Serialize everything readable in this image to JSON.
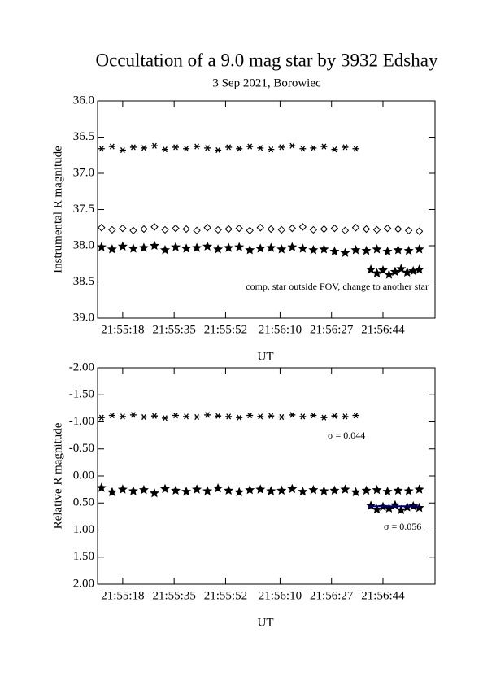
{
  "chart_data": [
    {
      "type": "scatter",
      "title": "Occultation of a 9.0 mag star by 3932 Edshay",
      "subtitle": "3 Sep 2021, Borowiec",
      "xlabel": "UT",
      "ylabel": "Instrumental R magnitude",
      "annotation": "comp. star outside FOV, change to another star",
      "xlim": [
        78909.7,
        79021.2
      ],
      "xticks": [
        {
          "value": 78918,
          "label": "21:55:18"
        },
        {
          "value": 78935,
          "label": "21:55:35"
        },
        {
          "value": 78952,
          "label": "21:55:52"
        },
        {
          "value": 78970,
          "label": "21:56:10"
        },
        {
          "value": 78987,
          "label": "21:56:27"
        },
        {
          "value": 79004,
          "label": "21:56:44"
        }
      ],
      "ylim": [
        39.0,
        36.0
      ],
      "yticks": [
        {
          "value": 36,
          "label": "36.0"
        },
        36.5,
        {
          "value": 37,
          "label": "37.0"
        },
        37.5,
        {
          "value": 38,
          "label": "38.0"
        },
        38.5,
        {
          "value": 39,
          "label": "39.0"
        }
      ],
      "series": [
        {
          "marker": "asterisk",
          "color": "#000000",
          "x": [
            78911,
            78914.5,
            78918,
            78921.5,
            78925,
            78928.5,
            78932,
            78935.5,
            78939,
            78942.5,
            78946,
            78949.5,
            78953,
            78956.5,
            78960,
            78963.5,
            78967,
            78970.5,
            78974,
            78977.5,
            78981,
            78984.5,
            78988,
            78991.5,
            78995
          ],
          "values": [
            36.66,
            36.63,
            36.68,
            36.64,
            36.65,
            36.62,
            36.67,
            36.64,
            36.66,
            36.63,
            36.65,
            36.68,
            36.64,
            36.66,
            36.63,
            36.65,
            36.67,
            36.64,
            36.62,
            36.66,
            36.65,
            36.63,
            36.67,
            36.64,
            36.66
          ]
        },
        {
          "marker": "diamond",
          "color": "#000000",
          "x": [
            78911,
            78914.5,
            78918,
            78921.5,
            78925,
            78928.5,
            78932,
            78935.5,
            78939,
            78942.5,
            78946,
            78949.5,
            78953,
            78956.5,
            78960,
            78963.5,
            78967,
            78970.5,
            78974,
            78977.5,
            78981,
            78984.5,
            78988,
            78991.5,
            78995,
            78998.5,
            79002,
            79005.5,
            79009,
            79012.5,
            79016
          ],
          "values": [
            37.75,
            37.78,
            37.76,
            37.79,
            37.77,
            37.74,
            37.78,
            37.76,
            37.77,
            37.79,
            37.75,
            37.78,
            37.77,
            37.76,
            37.79,
            37.75,
            37.77,
            37.78,
            37.76,
            37.74,
            37.78,
            37.77,
            37.76,
            37.79,
            37.75,
            37.77,
            37.78,
            37.76,
            37.77,
            37.79,
            37.8
          ]
        },
        {
          "marker": "star",
          "color": "#000000",
          "x": [
            78911,
            78914.5,
            78918,
            78921.5,
            78925,
            78928.5,
            78932,
            78935.5,
            78939,
            78942.5,
            78946,
            78949.5,
            78953,
            78956.5,
            78960,
            78963.5,
            78967,
            78970.5,
            78974,
            78977.5,
            78981,
            78984.5,
            78988,
            78991.5,
            78995,
            78998.5,
            79002,
            79005.5,
            79009,
            79012.5,
            79016
          ],
          "values": [
            38.02,
            38.05,
            38.01,
            38.04,
            38.03,
            38.0,
            38.06,
            38.02,
            38.04,
            38.03,
            38.01,
            38.05,
            38.03,
            38.02,
            38.06,
            38.04,
            38.03,
            38.05,
            38.02,
            38.04,
            38.06,
            38.05,
            38.08,
            38.1,
            38.06,
            38.07,
            38.05,
            38.08,
            38.06,
            38.07,
            38.05
          ]
        },
        {
          "marker": "star",
          "color": "#000000",
          "x": [
            79000,
            79002,
            79004,
            79006,
            79008,
            79010,
            79012,
            79014,
            79016
          ],
          "values": [
            38.33,
            38.38,
            38.34,
            38.4,
            38.36,
            38.32,
            38.37,
            38.35,
            38.33
          ]
        }
      ]
    },
    {
      "type": "scatter",
      "xlabel": "UT",
      "ylabel": "Relative R magnitude",
      "annotations": [
        "σ = 0.044",
        "σ = 0.056"
      ],
      "xlim": [
        78909.7,
        79021.2
      ],
      "xticks": [
        {
          "value": 78918,
          "label": "21:55:18"
        },
        {
          "value": 78935,
          "label": "21:55:35"
        },
        {
          "value": 78952,
          "label": "21:55:52"
        },
        {
          "value": 78970,
          "label": "21:56:10"
        },
        {
          "value": 78987,
          "label": "21:56:27"
        },
        {
          "value": 79004,
          "label": "21:56:44"
        }
      ],
      "ylim": [
        2.0,
        -2.0
      ],
      "yticks": [
        {
          "value": -2,
          "label": "-2.00"
        },
        {
          "value": -1.5,
          "label": "-1.50"
        },
        {
          "value": -1,
          "label": "-1.00"
        },
        {
          "value": -0.5,
          "label": "-0.50"
        },
        {
          "value": 0,
          "label": "0.00"
        },
        {
          "value": 0.5,
          "label": "0.50"
        },
        {
          "value": 1,
          "label": "1.00"
        },
        {
          "value": 1.5,
          "label": "1.50"
        },
        {
          "value": 2,
          "label": "2.00"
        }
      ],
      "series": [
        {
          "marker": "asterisk",
          "color": "#000000",
          "x": [
            78911,
            78914.5,
            78918,
            78921.5,
            78925,
            78928.5,
            78932,
            78935.5,
            78939,
            78942.5,
            78946,
            78949.5,
            78953,
            78956.5,
            78960,
            78963.5,
            78967,
            78970.5,
            78974,
            78977.5,
            78981,
            78984.5,
            78988,
            78991.5,
            78995
          ],
          "values": [
            -1.08,
            -1.12,
            -1.1,
            -1.13,
            -1.09,
            -1.11,
            -1.07,
            -1.12,
            -1.1,
            -1.09,
            -1.13,
            -1.11,
            -1.1,
            -1.08,
            -1.12,
            -1.1,
            -1.11,
            -1.09,
            -1.13,
            -1.1,
            -1.12,
            -1.08,
            -1.11,
            -1.1,
            -1.12
          ]
        },
        {
          "marker": "star",
          "color": "#000000",
          "x": [
            78911,
            78914.5,
            78918,
            78921.5,
            78925,
            78928.5,
            78932,
            78935.5,
            78939,
            78942.5,
            78946,
            78949.5,
            78953,
            78956.5,
            78960,
            78963.5,
            78967,
            78970.5,
            78974,
            78977.5,
            78981,
            78984.5,
            78988,
            78991.5,
            78995,
            78998.5,
            79002,
            79005.5,
            79009,
            79012.5,
            79016
          ],
          "values": [
            0.22,
            0.3,
            0.25,
            0.28,
            0.26,
            0.32,
            0.24,
            0.27,
            0.29,
            0.25,
            0.28,
            0.23,
            0.27,
            0.3,
            0.26,
            0.25,
            0.28,
            0.27,
            0.24,
            0.29,
            0.26,
            0.28,
            0.27,
            0.25,
            0.3,
            0.27,
            0.26,
            0.29,
            0.27,
            0.28,
            0.25
          ]
        },
        {
          "marker": "star",
          "color": "#000000",
          "x": [
            79000,
            79002,
            79004,
            79006,
            79008,
            79010,
            79012,
            79014,
            79016
          ],
          "values": [
            0.55,
            0.62,
            0.57,
            0.6,
            0.54,
            0.63,
            0.58,
            0.56,
            0.59
          ]
        },
        {
          "marker": "line",
          "color": "#00008b",
          "x": [
            78999,
            79016
          ],
          "values": [
            0.56,
            0.56
          ]
        }
      ]
    }
  ]
}
